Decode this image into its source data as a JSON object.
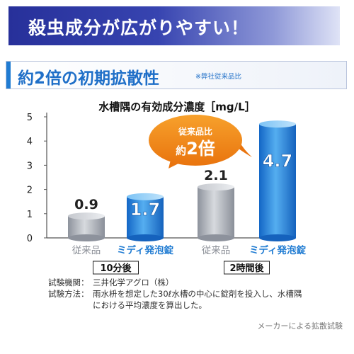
{
  "header": {
    "banner_text": "殺虫成分が広がりやすい！",
    "subhead_text": "約2倍の初期拡散性",
    "subhead_note": "※弊社従来品比"
  },
  "callout": {
    "line1": "従来品比",
    "prefix": "約",
    "number": "2倍"
  },
  "colors": {
    "banner": "#27309a",
    "accent_blue": "#1f7bd2",
    "grey_bar": "#a9adb6",
    "callout_orange": "#f08a18"
  },
  "chart_data": {
    "type": "bar",
    "title": "水槽隅の有効成分濃度［mg/L］",
    "ylabel": "",
    "xlabel": "",
    "ylim": [
      0,
      5
    ],
    "yticks": [
      0,
      1,
      2,
      3,
      4,
      5
    ],
    "categories": [
      "従来品",
      "ミディ発泡錠",
      "従来品",
      "ミディ発泡錠"
    ],
    "groups": [
      "10分後",
      "2時間後"
    ],
    "values": [
      0.9,
      1.7,
      2.1,
      4.7
    ],
    "value_labels": [
      "0.9",
      "1.7",
      "2.1",
      "4.7"
    ],
    "grid": false,
    "legend": "none"
  },
  "notes": {
    "org_label": "試験機関：",
    "org_value": "三井化学アグロ（株）",
    "method_label": "試験方法：",
    "method_line1": "雨水枡を想定した30ℓ水槽の中心に錠剤を投入し、水槽隅",
    "method_line2": "における平均濃度を算出した。"
  },
  "source": "メーカーによる拡散試験"
}
